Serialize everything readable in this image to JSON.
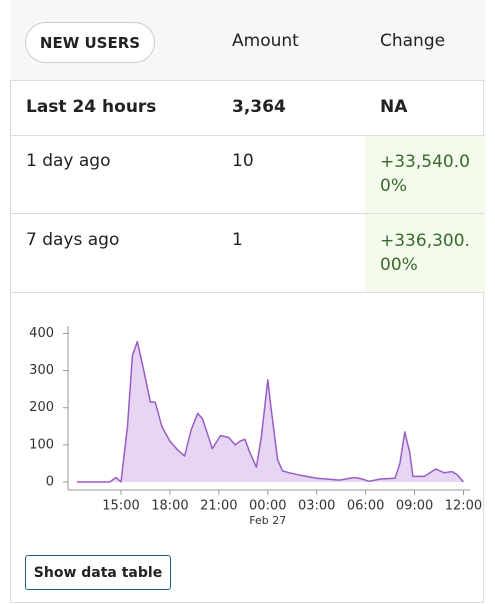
{
  "table": {
    "header": [
      "NEW USERS",
      "Amount",
      "Change"
    ],
    "rows": [
      [
        "Last 24 hours",
        "3,364",
        "NA"
      ],
      [
        "1 day ago",
        "10",
        "+33,540.00%"
      ],
      [
        "7 days ago",
        "1",
        "+336,300.00%"
      ]
    ]
  },
  "chart_data": {
    "type": "area",
    "x": [
      12.3,
      14.3,
      14.7,
      15.0,
      15.4,
      15.7,
      16.0,
      16.4,
      16.8,
      17.1,
      17.5,
      18.0,
      18.5,
      18.9,
      19.3,
      19.7,
      20.0,
      20.3,
      20.6,
      21.1,
      21.6,
      22.0,
      22.3,
      22.6,
      22.9,
      23.3,
      23.6,
      24.0,
      24.2,
      24.6,
      24.9,
      25.3,
      26.0,
      27.0,
      28.4,
      29.3,
      29.8,
      30.2,
      30.9,
      31.8,
      32.1,
      32.4,
      32.7,
      32.9,
      33.6,
      34.3,
      34.8,
      35.3,
      35.6,
      36.0
    ],
    "series": [
      {
        "color": "#9a5cc6",
        "fill": "#e6d6f3",
        "values": [
          0,
          0,
          12,
          0,
          150,
          340,
          378,
          300,
          215,
          215,
          150,
          110,
          85,
          70,
          140,
          185,
          170,
          130,
          90,
          125,
          120,
          100,
          110,
          115,
          80,
          40,
          120,
          275,
          200,
          60,
          30,
          25,
          18,
          10,
          5,
          12,
          8,
          2,
          8,
          10,
          50,
          135,
          80,
          15,
          15,
          35,
          25,
          28,
          20,
          0
        ]
      }
    ],
    "xlim": [
      11.75,
      36.4
    ],
    "ylim": [
      0,
      420
    ],
    "xticks": [
      {
        "value": 15,
        "label": "15:00"
      },
      {
        "value": 18,
        "label": "18:00"
      },
      {
        "value": 21,
        "label": "21:00"
      },
      {
        "value": 24,
        "label": "00:00"
      },
      {
        "value": 27,
        "label": "03:00"
      },
      {
        "value": 30,
        "label": "06:00"
      },
      {
        "value": 33,
        "label": "09:00"
      },
      {
        "value": 36,
        "label": "12:00"
      }
    ],
    "yticks": [
      0,
      100,
      200,
      300,
      400
    ],
    "date_label": "Feb 27"
  },
  "button": "Show data table"
}
